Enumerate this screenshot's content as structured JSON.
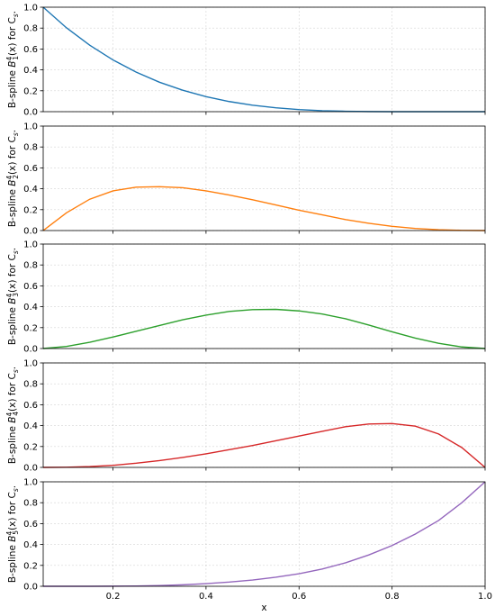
{
  "chart_data": [
    {
      "type": "line",
      "ylabel_prefix": "B-spline ",
      "ylabel_func": "B",
      "ylabel_sup": "4",
      "ylabel_sub": "1",
      "ylabel_tail": "(x) for C",
      "ylabel_tail_sub": "s",
      "ylabel_end": ".",
      "xlim": [
        0.05,
        1.0
      ],
      "ylim": [
        0,
        1.0
      ],
      "xticks": [
        "0.2",
        "0.4",
        "0.6",
        "0.8",
        "1.0"
      ],
      "yticks": [
        "0.0",
        "0.2",
        "0.4",
        "0.6",
        "0.8",
        "1.0"
      ],
      "show_xticklabels": false,
      "grid": true,
      "series": [
        {
          "color": "#1f77b4",
          "x": [
            0.05,
            0.1,
            0.15,
            0.2,
            0.25,
            0.3,
            0.35,
            0.4,
            0.45,
            0.5,
            0.55,
            0.6,
            0.65,
            0.7,
            0.75,
            0.8,
            0.85,
            0.9,
            0.95,
            1.0
          ],
          "y": [
            1.0,
            0.803,
            0.636,
            0.495,
            0.378,
            0.282,
            0.205,
            0.144,
            0.097,
            0.062,
            0.037,
            0.02,
            0.009,
            0.004,
            0.001,
            0.0,
            0.0,
            0.0,
            0.0,
            0.0
          ]
        }
      ]
    },
    {
      "type": "line",
      "ylabel_prefix": "B-spline ",
      "ylabel_func": "B",
      "ylabel_sup": "4",
      "ylabel_sub": "2",
      "ylabel_tail": "(x) for C",
      "ylabel_tail_sub": "s",
      "ylabel_end": ".",
      "xlim": [
        0.05,
        1.0
      ],
      "ylim": [
        0,
        1.0
      ],
      "xticks": [
        "0.2",
        "0.4",
        "0.6",
        "0.8",
        "1.0"
      ],
      "yticks": [
        "0.0",
        "0.2",
        "0.4",
        "0.6",
        "0.8",
        "1.0"
      ],
      "show_xticklabels": false,
      "grid": true,
      "series": [
        {
          "color": "#ff7f0e",
          "x": [
            0.05,
            0.1,
            0.15,
            0.2,
            0.25,
            0.3,
            0.35,
            0.4,
            0.45,
            0.5,
            0.55,
            0.6,
            0.65,
            0.7,
            0.75,
            0.8,
            0.85,
            0.9,
            0.95,
            1.0
          ],
          "y": [
            0.0,
            0.17,
            0.3,
            0.38,
            0.415,
            0.42,
            0.41,
            0.38,
            0.34,
            0.295,
            0.245,
            0.195,
            0.15,
            0.105,
            0.07,
            0.04,
            0.02,
            0.008,
            0.002,
            0.0
          ]
        }
      ]
    },
    {
      "type": "line",
      "ylabel_prefix": "B-spline ",
      "ylabel_func": "B",
      "ylabel_sup": "4",
      "ylabel_sub": "3",
      "ylabel_tail": "(x) for C",
      "ylabel_tail_sub": "s",
      "ylabel_end": ".",
      "xlim": [
        0.05,
        1.0
      ],
      "ylim": [
        0,
        1.0
      ],
      "xticks": [
        "0.2",
        "0.4",
        "0.6",
        "0.8",
        "1.0"
      ],
      "yticks": [
        "0.0",
        "0.2",
        "0.4",
        "0.6",
        "0.8",
        "1.0"
      ],
      "show_xticklabels": false,
      "grid": true,
      "series": [
        {
          "color": "#2ca02c",
          "x": [
            0.05,
            0.1,
            0.15,
            0.2,
            0.25,
            0.3,
            0.35,
            0.4,
            0.45,
            0.5,
            0.55,
            0.6,
            0.65,
            0.7,
            0.75,
            0.8,
            0.85,
            0.9,
            0.95,
            1.0
          ],
          "y": [
            0.0,
            0.02,
            0.06,
            0.11,
            0.165,
            0.22,
            0.275,
            0.32,
            0.355,
            0.372,
            0.375,
            0.36,
            0.33,
            0.285,
            0.225,
            0.16,
            0.1,
            0.05,
            0.015,
            0.0
          ]
        }
      ]
    },
    {
      "type": "line",
      "ylabel_prefix": "B-spline ",
      "ylabel_func": "B",
      "ylabel_sup": "4",
      "ylabel_sub": "4",
      "ylabel_tail": "(x) for C",
      "ylabel_tail_sub": "s",
      "ylabel_end": ".",
      "xlim": [
        0.05,
        1.0
      ],
      "ylim": [
        0,
        1.0
      ],
      "xticks": [
        "0.2",
        "0.4",
        "0.6",
        "0.8",
        "1.0"
      ],
      "yticks": [
        "0.0",
        "0.2",
        "0.4",
        "0.6",
        "0.8",
        "1.0"
      ],
      "show_xticklabels": false,
      "grid": true,
      "series": [
        {
          "color": "#d62728",
          "x": [
            0.05,
            0.1,
            0.15,
            0.2,
            0.25,
            0.3,
            0.35,
            0.4,
            0.45,
            0.5,
            0.55,
            0.6,
            0.65,
            0.7,
            0.75,
            0.8,
            0.85,
            0.9,
            0.95,
            1.0
          ],
          "y": [
            0.0,
            0.002,
            0.008,
            0.02,
            0.04,
            0.065,
            0.095,
            0.13,
            0.17,
            0.21,
            0.255,
            0.3,
            0.345,
            0.39,
            0.415,
            0.42,
            0.395,
            0.32,
            0.19,
            0.0
          ]
        }
      ]
    },
    {
      "type": "line",
      "ylabel_prefix": "B-spline ",
      "ylabel_func": "B",
      "ylabel_sup": "4",
      "ylabel_sub": "5",
      "ylabel_tail": "(x) for C",
      "ylabel_tail_sub": "s",
      "ylabel_end": ".",
      "xlabel": "x",
      "xlim": [
        0.05,
        1.0
      ],
      "ylim": [
        0,
        1.0
      ],
      "xticks": [
        "0.2",
        "0.4",
        "0.6",
        "0.8",
        "1.0"
      ],
      "yticks": [
        "0.0",
        "0.2",
        "0.4",
        "0.6",
        "0.8",
        "1.0"
      ],
      "show_xticklabels": true,
      "grid": true,
      "series": [
        {
          "color": "#9467bd",
          "x": [
            0.05,
            0.1,
            0.15,
            0.2,
            0.25,
            0.3,
            0.35,
            0.4,
            0.45,
            0.5,
            0.55,
            0.6,
            0.65,
            0.7,
            0.75,
            0.8,
            0.85,
            0.9,
            0.95,
            1.0
          ],
          "y": [
            0.0,
            0.0,
            0.0,
            0.001,
            0.003,
            0.007,
            0.014,
            0.025,
            0.04,
            0.06,
            0.087,
            0.12,
            0.165,
            0.225,
            0.3,
            0.39,
            0.5,
            0.63,
            0.8,
            1.0
          ]
        }
      ]
    }
  ]
}
